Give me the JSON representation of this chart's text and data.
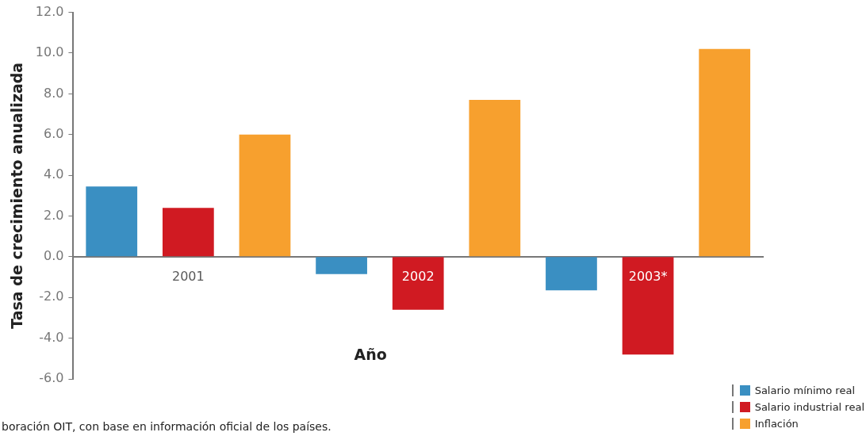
{
  "chart_data": {
    "type": "bar",
    "xlabel": "Año",
    "ylabel": "Tasa de crecimiento anualizada",
    "categories": [
      "2001",
      "2002",
      "2003*"
    ],
    "series": [
      {
        "name": "Salario mínimo real",
        "color": "#3a8fc2",
        "values": [
          3.45,
          -0.85,
          -1.65
        ]
      },
      {
        "name": "Salario industrial real",
        "color": "#d01a22",
        "values": [
          2.4,
          -2.6,
          -4.8
        ]
      },
      {
        "name": "Inflación",
        "color": "#f7a02e",
        "values": [
          6.0,
          7.7,
          10.2
        ]
      }
    ],
    "ylim": [
      -6,
      12
    ],
    "yticks": [
      {
        "value": -6,
        "label": "-6.0"
      },
      {
        "value": -4,
        "label": "-4.0"
      },
      {
        "value": -2,
        "label": "-2.0"
      },
      {
        "value": 0,
        "label": "0.0"
      },
      {
        "value": 2,
        "label": "2.0"
      },
      {
        "value": 4,
        "label": "4.0"
      },
      {
        "value": 6,
        "label": "6.0"
      },
      {
        "value": 8,
        "label": "8.0"
      },
      {
        "value": 10,
        "label": "10.0"
      },
      {
        "value": 12,
        "label": "12.0"
      }
    ],
    "grid": false,
    "legend": "bottom right",
    "annotations": [
      "boración OIT, con base en información oficial de los países."
    ]
  }
}
